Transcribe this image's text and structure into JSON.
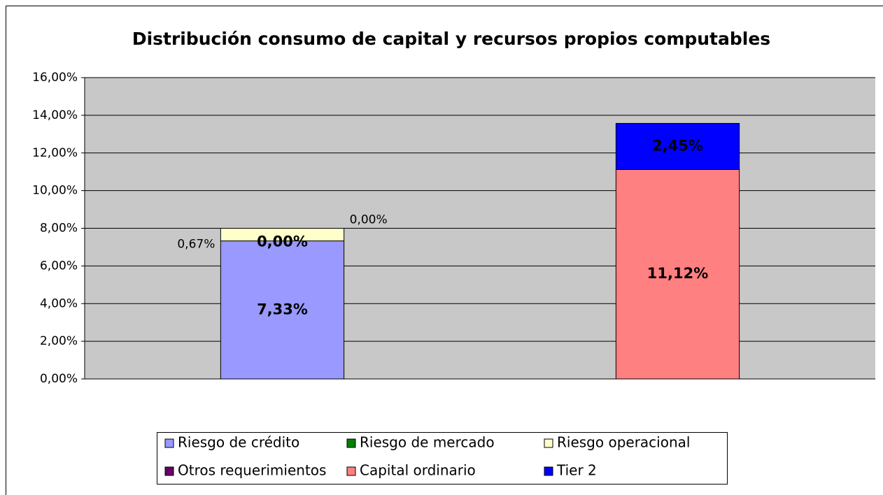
{
  "chart_data": {
    "type": "bar",
    "stacked": true,
    "title": "Distribución consumo de capital y recursos propios computables",
    "categories": [
      null,
      null
    ],
    "series": [
      {
        "name": "Riesgo de crédito",
        "color": "#9999ff",
        "values": [
          7.33,
          null
        ],
        "value_labels": [
          "7,33%",
          null
        ]
      },
      {
        "name": "Riesgo de mercado",
        "color": "#008000",
        "values": [
          0,
          null
        ],
        "value_labels": [
          "0,00%",
          null
        ]
      },
      {
        "name": "Riesgo operacional",
        "color": "#ffffcc",
        "values": [
          0.67,
          null
        ],
        "value_labels": [
          "0,67%",
          null
        ]
      },
      {
        "name": "Otros requerimientos",
        "color": "#660066",
        "values": [
          0,
          null
        ],
        "value_labels": [
          "0,00%",
          null
        ]
      },
      {
        "name": "Capital ordinario",
        "color": "#ff8080",
        "values": [
          null,
          11.12
        ],
        "value_labels": [
          null,
          "11,12%"
        ]
      },
      {
        "name": "Tier 2",
        "color": "#0000ff",
        "values": [
          null,
          2.45
        ],
        "value_labels": [
          null,
          "2,45%"
        ]
      }
    ],
    "ylim": [
      0,
      16
    ],
    "yticks": [
      {
        "value": 0,
        "label": "0,00%"
      },
      {
        "value": 2,
        "label": "2,00%"
      },
      {
        "value": 4,
        "label": "4,00%"
      },
      {
        "value": 6,
        "label": "6,00%"
      },
      {
        "value": 8,
        "label": "8,00%"
      },
      {
        "value": 10,
        "label": "10,00%"
      },
      {
        "value": 12,
        "label": "12,00%"
      },
      {
        "value": 14,
        "label": "14,00%"
      },
      {
        "value": 16,
        "label": "16,00%"
      }
    ],
    "grid": true,
    "legend": "bottom"
  }
}
